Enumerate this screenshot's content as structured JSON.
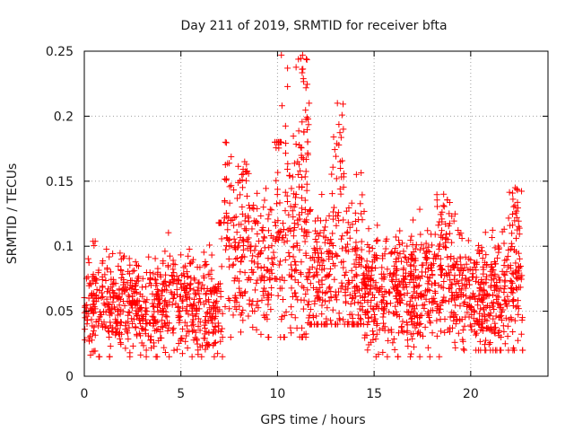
{
  "chart_data": {
    "type": "scatter",
    "title": "Day 211 of 2019, SRMTID for receiver bfta",
    "xlabel": "GPS time / hours",
    "ylabel": "SRMTID / TECUs",
    "xlim": [
      0,
      24
    ],
    "ylim": [
      0,
      0.25
    ],
    "x_ticks": [
      0,
      5,
      10,
      15,
      20
    ],
    "y_ticks": [
      0,
      0.05,
      0.1,
      0.15,
      0.2,
      0.25
    ],
    "x_tick_labels": [
      "0",
      "5",
      "10",
      "15",
      "20"
    ],
    "y_tick_labels": [
      "0",
      "0.05",
      "0.1",
      "0.15",
      "0.2",
      "0.25"
    ],
    "grid": true,
    "marker": "+",
    "color": "#ff0000",
    "data_span_hours": [
      0,
      22.7
    ],
    "series": [
      {
        "name": "bfta",
        "profile_note": "approximate envelope of the plotted points by hour",
        "segments": [
          {
            "x_range": [
              0,
              7.2
            ],
            "typical": 0.055,
            "min": 0.015,
            "max": 0.118
          },
          {
            "x_range": [
              7.2,
              10.2
            ],
            "typical": 0.085,
            "min": 0.03,
            "max": 0.18
          },
          {
            "x_range": [
              10.2,
              11.6
            ],
            "typical": 0.095,
            "min": 0.03,
            "max": 0.247
          },
          {
            "x_range": [
              11.6,
              14.5
            ],
            "typical": 0.075,
            "min": 0.04,
            "max": 0.21
          },
          {
            "x_range": [
              14.5,
              19.5
            ],
            "typical": 0.065,
            "min": 0.015,
            "max": 0.145
          },
          {
            "x_range": [
              19.5,
              22.7
            ],
            "typical": 0.06,
            "min": 0.02,
            "max": 0.145
          }
        ],
        "peaks": [
          {
            "x": 7.3,
            "y": 0.18
          },
          {
            "x": 8.3,
            "y": 0.165
          },
          {
            "x": 10.2,
            "y": 0.247
          },
          {
            "x": 11.3,
            "y": 0.247
          },
          {
            "x": 13.1,
            "y": 0.21
          },
          {
            "x": 18.6,
            "y": 0.14
          },
          {
            "x": 22.3,
            "y": 0.145
          }
        ]
      }
    ]
  }
}
